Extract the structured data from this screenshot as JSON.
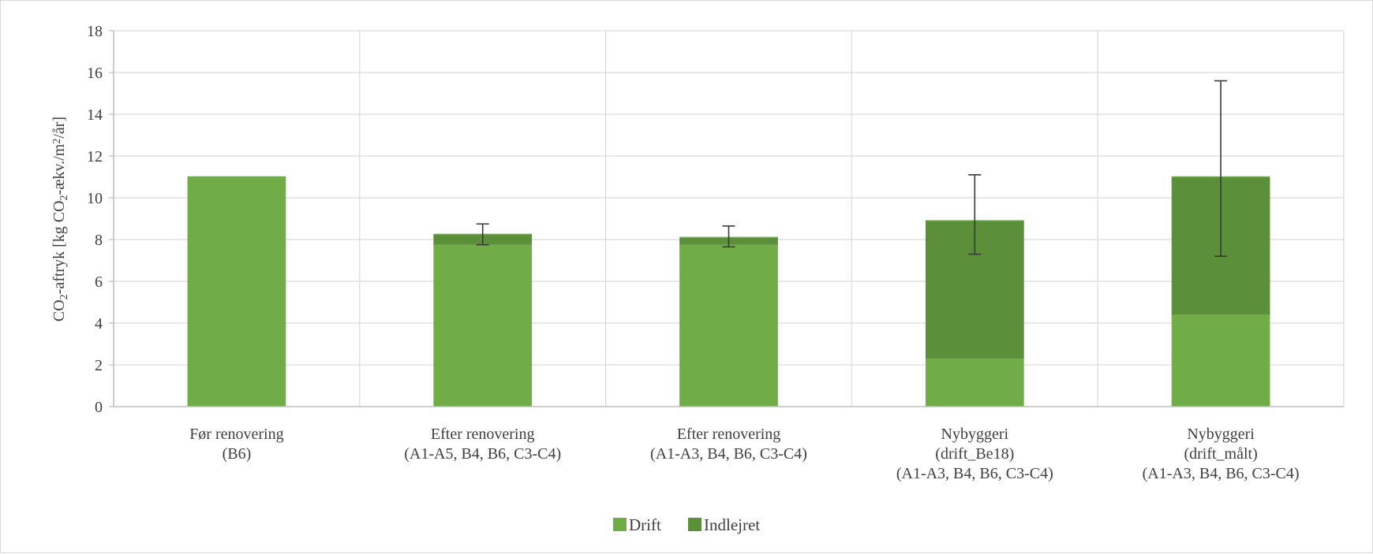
{
  "chart_data": {
    "type": "bar",
    "stacked": true,
    "title": "",
    "xlabel": "",
    "ylabel": {
      "parts": [
        "CO",
        "2",
        "-aftryk [kg CO",
        "2",
        "-ækv./m",
        "2",
        "/år]"
      ]
    },
    "ylim": [
      0,
      18
    ],
    "yticks": [
      0,
      2,
      4,
      6,
      8,
      10,
      12,
      14,
      16,
      18
    ],
    "grid": true,
    "legend_position": "bottom",
    "categories": [
      [
        "Før renovering",
        "(B6)"
      ],
      [
        "Efter renovering",
        "(A1-A5, B4, B6, C3-C4)"
      ],
      [
        "Efter renovering",
        "(A1-A3, B4, B6, C3-C4)"
      ],
      [
        "Nybyggeri",
        "(drift_Be18)",
        "(A1-A3, B4, B6, C3-C4)"
      ],
      [
        "Nybyggeri",
        "(drift_målt)",
        "(A1-A3, B4, B6, C3-C4)"
      ]
    ],
    "series": [
      {
        "name": "Drift",
        "color": "#70ad47",
        "values": [
          11.0,
          7.75,
          7.75,
          2.3,
          4.4
        ]
      },
      {
        "name": "Indlejret",
        "color": "#5b8f3a",
        "values": [
          0.0,
          0.5,
          0.35,
          6.6,
          6.6
        ]
      }
    ],
    "error_bars": [
      null,
      {
        "low": 7.75,
        "high": 8.75
      },
      {
        "low": 7.65,
        "high": 8.65
      },
      {
        "low": 7.3,
        "high": 11.1
      },
      {
        "low": 7.2,
        "high": 15.6
      }
    ]
  }
}
